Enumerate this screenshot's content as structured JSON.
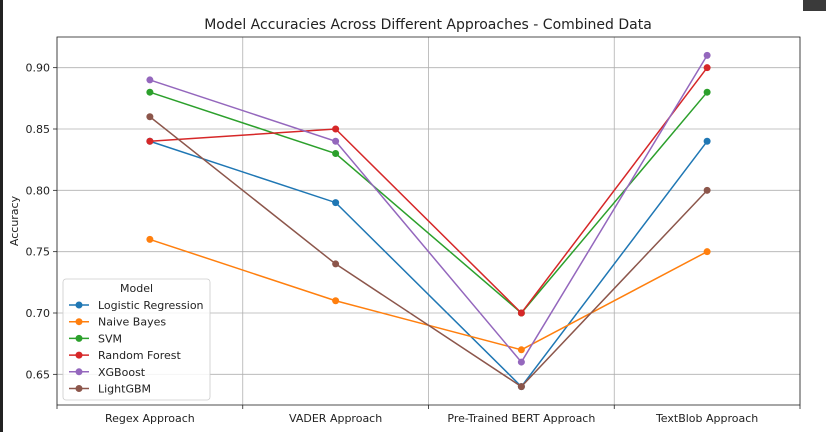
{
  "chart_data": {
    "type": "line",
    "title": "Model Accuracies Across Different Approaches - Combined Data",
    "xlabel": "",
    "ylabel": "Accuracy",
    "categories": [
      "Regex Approach",
      "VADER Approach",
      "Pre-Trained BERT Approach",
      "TextBlob Approach"
    ],
    "ylim": [
      0.625,
      0.925
    ],
    "yticks": [
      0.65,
      0.7,
      0.75,
      0.8,
      0.85,
      0.9
    ],
    "ytick_labels": [
      "0.65",
      "0.70",
      "0.75",
      "0.80",
      "0.85",
      "0.90"
    ],
    "grid": true,
    "legend": {
      "title": "Model",
      "placement": "lower-left"
    },
    "series": [
      {
        "name": "Logistic Regression",
        "color": "#1f77b4",
        "values": [
          0.84,
          0.79,
          0.64,
          0.84
        ]
      },
      {
        "name": "Naive Bayes",
        "color": "#ff7f0e",
        "values": [
          0.76,
          0.71,
          0.67,
          0.75
        ]
      },
      {
        "name": "SVM",
        "color": "#2ca02c",
        "values": [
          0.88,
          0.83,
          0.7,
          0.88
        ]
      },
      {
        "name": "Random Forest",
        "color": "#d62728",
        "values": [
          0.84,
          0.85,
          0.7,
          0.9
        ]
      },
      {
        "name": "XGBoost",
        "color": "#9467bd",
        "values": [
          0.89,
          0.84,
          0.66,
          0.91
        ]
      },
      {
        "name": "LightGBM",
        "color": "#8c564b",
        "values": [
          0.86,
          0.74,
          0.64,
          0.8
        ]
      }
    ]
  }
}
